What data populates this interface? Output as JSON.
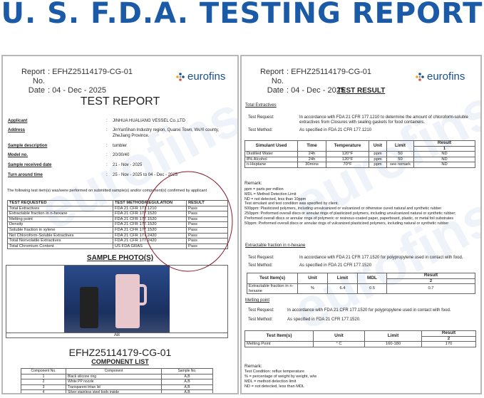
{
  "banner": "U. S. F.D.A. TESTING REPORT",
  "brand": {
    "name": "eurofins",
    "color": "#1b4f8a",
    "banner_color": "#1b5aa6"
  },
  "left": {
    "report_label": "Report No.",
    "report_no": ": EFHZ25114179-CG-01",
    "date_label": "Date",
    "date": ": 04 - Dec - 2025",
    "title": "TEST REPORT",
    "fields": [
      {
        "label": "Applicant",
        "value": "JINHUA HUALIANG VESSEL Co.,LTD"
      },
      {
        "label": "Address",
        "value": "JinYanShan Industry region, Quanxi Town, WuYi county, ZheJiang Province."
      },
      {
        "label": "Sample description",
        "value": "tumbler"
      },
      {
        "label": "Model no.",
        "value": "20/30/40"
      },
      {
        "label": "Sample received date",
        "value": "21 - Nov - 2025"
      },
      {
        "label": "Turn around time",
        "value": "25 - Nov - 2025 to 04 - Dec - 2025"
      }
    ],
    "intro": "The following test item(s) was/were performed on submitted sample(s) and/or component(s) confirmed by applicant",
    "tests_headers": [
      "TEST REQUESTED",
      "TEST METHOD/REGULATION",
      "RESULT"
    ],
    "tests": [
      [
        "Total Extractives",
        "FDA 21 CFR 177.1210",
        "Pass"
      ],
      [
        "Extractable fraction in n-hexane",
        "FDA 21 CFR 177.1520",
        "Pass"
      ],
      [
        "Melting point",
        "FDA 21 CFR 177.1520",
        "Pass"
      ],
      [
        "Density",
        "FDA 21 CFR 177.1520",
        "Pass"
      ],
      [
        "Soluble fraction in xylene",
        "FDA 21 CFR 177.1520",
        "Pass"
      ],
      [
        "Net Chloroform-Soluble Extractives",
        "FDA 21 CFR 177.2420",
        "Pass"
      ],
      [
        "Total Nonvolatile Extractives",
        "FDA 21 CFR 177.2420",
        "Pass"
      ],
      [
        "Total Chromium Content",
        "US FDA GRAS",
        "Pass"
      ]
    ],
    "photo_title": "SAMPLE PHOTO(S)",
    "photo_caption": "AB",
    "report_code": "EFHZ25114179-CG-01",
    "component_title": "COMPONENT LIST",
    "component_headers": [
      "Component No.",
      "Component",
      "Sample No."
    ],
    "components": [
      [
        "1",
        "Black silicone ring",
        "A,B"
      ],
      [
        "2",
        "White PP nozzle",
        "A,B"
      ],
      [
        "3",
        "Transparent tritan lid",
        "A,B"
      ],
      [
        "4",
        "Silver stainless steel body inside",
        "A,B"
      ]
    ]
  },
  "right": {
    "report_label": "Report No.",
    "report_no": ": EFHZ25114179-CG-01",
    "date_label": "Date",
    "date": ": 04 - Dec - 2025",
    "title": "TEST RESULT",
    "s1": {
      "title": "Total Extractives",
      "req_label": "Test Request:",
      "req": "In accordance with FDA 21 CFR 177.1210 to determine the amount of chloroform-soluble extractives from Closures with sealing gaskets for food containers.",
      "method_label": "Test Method:",
      "method": "As specified in FDA 21 CFR 177.1210",
      "headers": [
        "Simulant Used",
        "Time",
        "Temperature",
        "Unit",
        "Limit",
        "Result",
        "1"
      ],
      "rows": [
        [
          "Distilled Water",
          "24h",
          "120°F",
          "ppm",
          "50",
          "ND"
        ],
        [
          "8% Alcohol",
          "24h",
          "120°F",
          "ppm",
          "50",
          "ND"
        ],
        [
          "n-Heptane",
          "30mins",
          "70°F",
          "ppm",
          "see remark",
          "ND"
        ]
      ],
      "remark_title": "Remark:",
      "remarks": [
        "ppm = parts per million",
        "MDL = Method Detection Limit",
        "ND = not detected, less than 10ppm",
        "Test simulant and test condition was specified by client.",
        "500ppm: Plasticized polymers, including unvulcanized or vulcanized or otherwise cured natural and synthetic rubber",
        "250ppm: Preformed overall discs or annular rings of plasticized polymers, including unvulcanized natural or synthetic rubber; Preformed overall discs or annular rings of polymeric or resinous-coated paper, paperboard, plastic, or metal foil substrates",
        "50ppm: Preformed overall discs or annular rings of vulcanized plasticized polymers, including natural or synthetic rubber"
      ]
    },
    "s2": {
      "title": "Extractable fraction in n-hexane",
      "req_label": "Test Request:",
      "req": "In accordance with FDA 21 CFR 177.1520 for polypropylene used in contact with food.",
      "method_label": "Test Method:",
      "method": "As specified in FDA 21 CFR 177.1520",
      "headers": [
        "Test Item(s)",
        "Unit",
        "Limit",
        "MDL",
        "Result",
        "2"
      ],
      "rows": [
        [
          "Extractable fraction in n-hexane",
          "%",
          "6.4",
          "0.5",
          "0.7"
        ]
      ]
    },
    "s3": {
      "title": "Melting point",
      "req_label": "Test Request:",
      "req": "In accordance with FDA 21 CFR 177.1520 for polypropylene used in contact with food.",
      "method_label": "Test Method:",
      "method": "As specified in FDA 21 CFR 177.1520.",
      "headers": [
        "Test Item(s)",
        "Unit",
        "Limit",
        "Result",
        "2"
      ],
      "rows": [
        [
          "Melting Point",
          "° C",
          "160-180",
          "170"
        ]
      ],
      "remark_title": "Remark:",
      "remarks": [
        "Test Condition: reflux temperature",
        "% = percentage of weight by weight, w/w",
        "MDL = method detection limit",
        "ND = not detected, less than MDL"
      ]
    }
  }
}
